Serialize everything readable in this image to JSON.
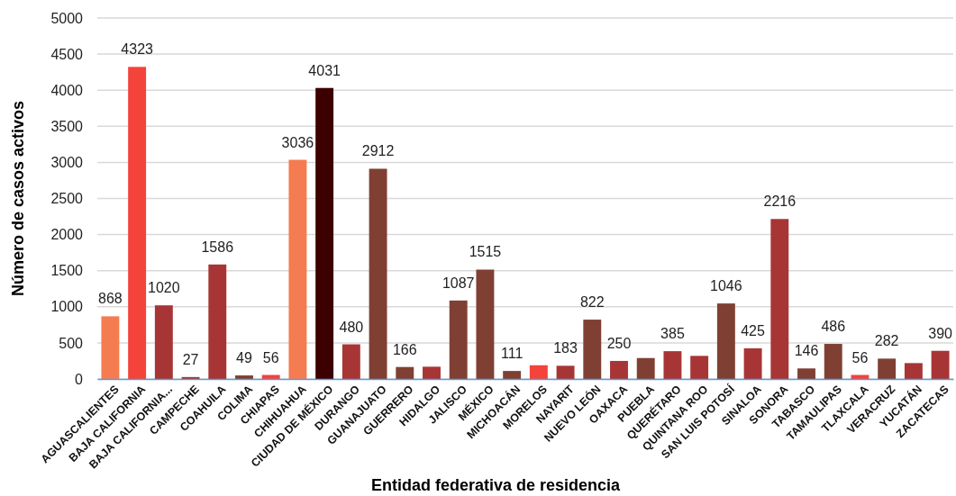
{
  "chart_data": {
    "type": "bar",
    "xlabel": "Entidad federativa de residencia",
    "ylabel": "Número de casos activos",
    "categories": [
      "AGUASCALIENTES",
      "BAJA CALIFORNIA",
      "BAJA CALIFORNIA...",
      "CAMPECHE",
      "COAHUILA",
      "COLIMA",
      "CHIAPAS",
      "CHIHUAHUA",
      "CIUDAD DE MÉXICO",
      "DURANGO",
      "GUANAJUATO",
      "GUERRERO",
      "HIDALGO",
      "JALISCO",
      "MÉXICO",
      "MICHOACÁN",
      "MORELOS",
      "NAYARIT",
      "NUEVO LEÓN",
      "OAXACA",
      "PUEBLA",
      "QUERÉTARO",
      "QUINTANA ROO",
      "SAN LUIS POTOSÍ",
      "SINALOA",
      "SONORA",
      "TABASCO",
      "TAMAULIPAS",
      "TLAXCALA",
      "VERACRUZ",
      "YUCATÁN",
      "ZACATECAS"
    ],
    "values": [
      868,
      4323,
      1020,
      27,
      1586,
      49,
      56,
      3036,
      4031,
      480,
      2912,
      166,
      170,
      1087,
      1515,
      111,
      190,
      183,
      822,
      250,
      290,
      385,
      320,
      1046,
      425,
      2216,
      146,
      486,
      56,
      282,
      220,
      390
    ],
    "value_labels": [
      "868",
      "4323",
      "1020",
      "27",
      "1586",
      "49",
      "56",
      "3036",
      "4031",
      "480",
      "2912",
      "166",
      null,
      "1087",
      "1515",
      "111",
      null,
      "183",
      "822",
      "250",
      null,
      "385",
      null,
      "1046",
      "425",
      "2216",
      "146",
      "486",
      "56",
      "282",
      null,
      "390"
    ],
    "colors": [
      "#f47c50",
      "#f4433b",
      "#a83535",
      "#a83535",
      "#a83535",
      "#7f4033",
      "#f4433b",
      "#f47c50",
      "#3d0000",
      "#a83535",
      "#7f4033",
      "#7f4033",
      "#a83535",
      "#7f4033",
      "#7f4033",
      "#7f4033",
      "#f4433b",
      "#a83535",
      "#7f4033",
      "#a83535",
      "#7f4033",
      "#a83535",
      "#a83535",
      "#7f4033",
      "#a83535",
      "#a83535",
      "#7f4033",
      "#7f4033",
      "#f4433b",
      "#7f4033",
      "#a83535",
      "#a83535"
    ],
    "ylim": [
      0,
      5000
    ],
    "yticks": [
      0,
      500,
      1000,
      1500,
      2000,
      2500,
      3000,
      3500,
      4000,
      4500,
      5000
    ],
    "grid": "y"
  }
}
